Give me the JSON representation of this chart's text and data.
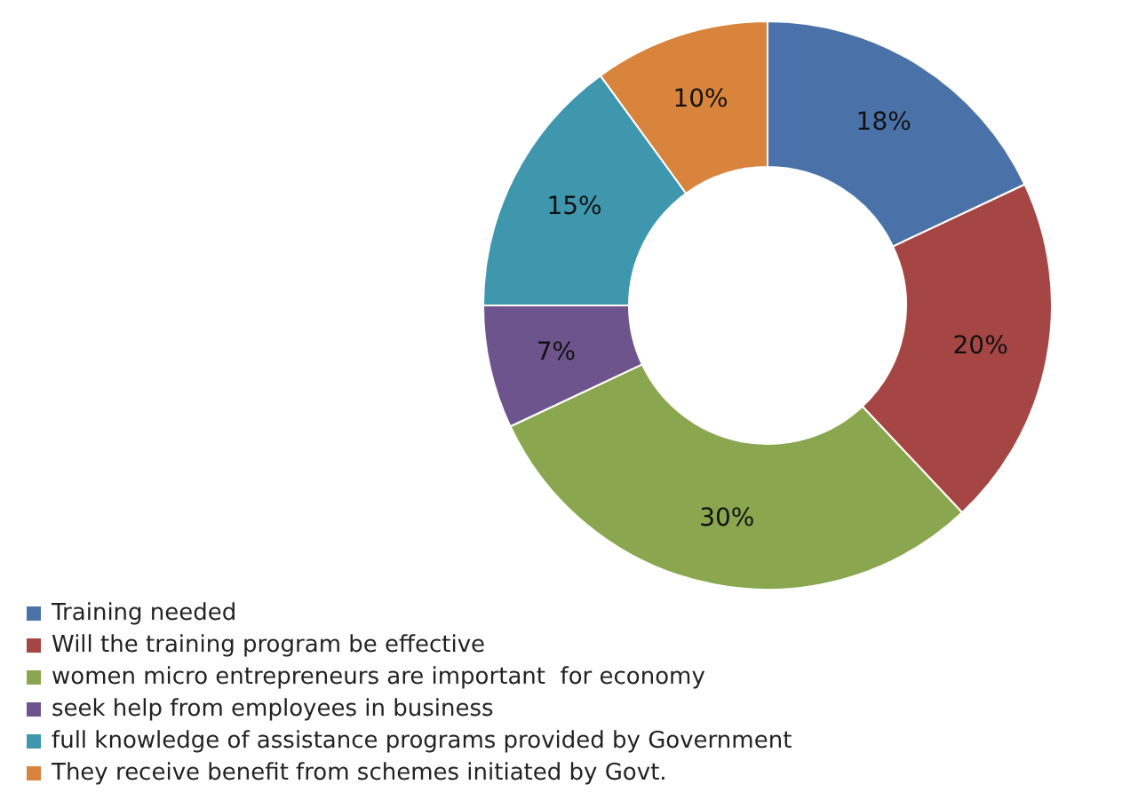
{
  "chart_data": {
    "type": "donut",
    "categories": [
      "Training needed",
      "Will the training program be effective",
      "women micro entrepreneurs are important  for economy",
      "seek help from employees in business",
      "full knowledge of assistance programs provided by Government",
      "They receive benefit from schemes initiated by Govt."
    ],
    "values": [
      18,
      20,
      30,
      7,
      15,
      10
    ],
    "colors": [
      "#4a72a8",
      "#a54644",
      "#8aa64e",
      "#6e548d",
      "#3f97ae",
      "#d9843c"
    ],
    "value_labels": [
      "18%",
      "20%",
      "30%",
      "7%",
      "15%",
      "10%"
    ],
    "legend": "bottom left"
  }
}
